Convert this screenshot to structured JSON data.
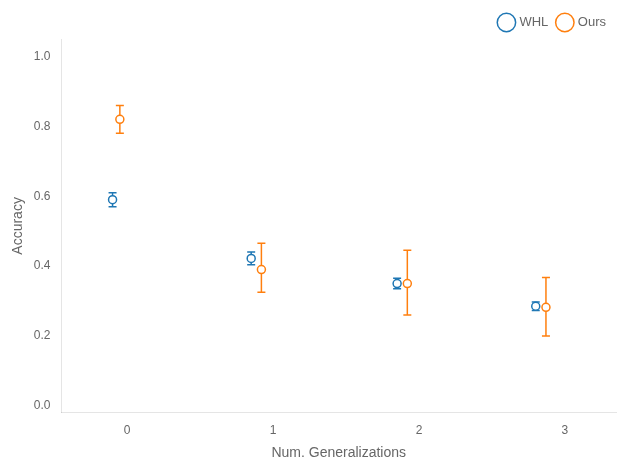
{
  "chart_data": {
    "type": "scatter",
    "xlabel": "Num. Generalizations",
    "ylabel": "Accuracy",
    "xlim": [
      -0.45,
      3.35
    ],
    "ylim": [
      -0.02,
      1.05
    ],
    "xticks": [
      0,
      1,
      2,
      3
    ],
    "yticks": [
      {
        "value": 0.0,
        "label": "0.0"
      },
      0.2,
      0.4,
      0.6,
      0.8,
      {
        "value": 1.0,
        "label": "1.0"
      }
    ],
    "grid": false,
    "legend": "upper right",
    "marker": "circle",
    "series": [
      {
        "name": "WHL",
        "color": "#1f77b4",
        "x": [
          -0.1,
          0.85,
          1.85,
          2.8
        ],
        "values": [
          0.59,
          0.422,
          0.35,
          0.285
        ],
        "error_low": [
          0.02,
          0.018,
          0.015,
          0.012
        ],
        "error_high": [
          0.02,
          0.018,
          0.015,
          0.012
        ]
      },
      {
        "name": "Ours",
        "color": "#ff7f0e",
        "x": [
          -0.05,
          0.92,
          1.92,
          2.87
        ],
        "values": [
          0.82,
          0.39,
          0.35,
          0.282
        ],
        "error_low": [
          0.04,
          0.065,
          0.09,
          0.082
        ],
        "error_high": [
          0.04,
          0.075,
          0.095,
          0.085
        ]
      }
    ]
  }
}
